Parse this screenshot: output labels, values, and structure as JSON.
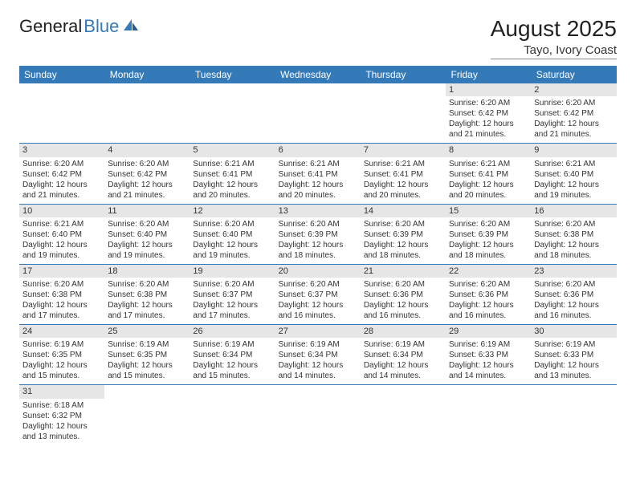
{
  "brand": {
    "part1": "General",
    "part2": "Blue"
  },
  "title": "August 2025",
  "location": "Tayo, Ivory Coast",
  "colors": {
    "header_bg": "#357ab8",
    "header_text": "#ffffff",
    "daynum_bg": "#e6e6e6",
    "border": "#357ab8",
    "text": "#333333",
    "background": "#ffffff"
  },
  "weekdays": [
    "Sunday",
    "Monday",
    "Tuesday",
    "Wednesday",
    "Thursday",
    "Friday",
    "Saturday"
  ],
  "weeks": [
    [
      {
        "day": "",
        "lines": []
      },
      {
        "day": "",
        "lines": []
      },
      {
        "day": "",
        "lines": []
      },
      {
        "day": "",
        "lines": []
      },
      {
        "day": "",
        "lines": []
      },
      {
        "day": "1",
        "lines": [
          "Sunrise: 6:20 AM",
          "Sunset: 6:42 PM",
          "Daylight: 12 hours",
          "and 21 minutes."
        ]
      },
      {
        "day": "2",
        "lines": [
          "Sunrise: 6:20 AM",
          "Sunset: 6:42 PM",
          "Daylight: 12 hours",
          "and 21 minutes."
        ]
      }
    ],
    [
      {
        "day": "3",
        "lines": [
          "Sunrise: 6:20 AM",
          "Sunset: 6:42 PM",
          "Daylight: 12 hours",
          "and 21 minutes."
        ]
      },
      {
        "day": "4",
        "lines": [
          "Sunrise: 6:20 AM",
          "Sunset: 6:42 PM",
          "Daylight: 12 hours",
          "and 21 minutes."
        ]
      },
      {
        "day": "5",
        "lines": [
          "Sunrise: 6:21 AM",
          "Sunset: 6:41 PM",
          "Daylight: 12 hours",
          "and 20 minutes."
        ]
      },
      {
        "day": "6",
        "lines": [
          "Sunrise: 6:21 AM",
          "Sunset: 6:41 PM",
          "Daylight: 12 hours",
          "and 20 minutes."
        ]
      },
      {
        "day": "7",
        "lines": [
          "Sunrise: 6:21 AM",
          "Sunset: 6:41 PM",
          "Daylight: 12 hours",
          "and 20 minutes."
        ]
      },
      {
        "day": "8",
        "lines": [
          "Sunrise: 6:21 AM",
          "Sunset: 6:41 PM",
          "Daylight: 12 hours",
          "and 20 minutes."
        ]
      },
      {
        "day": "9",
        "lines": [
          "Sunrise: 6:21 AM",
          "Sunset: 6:40 PM",
          "Daylight: 12 hours",
          "and 19 minutes."
        ]
      }
    ],
    [
      {
        "day": "10",
        "lines": [
          "Sunrise: 6:21 AM",
          "Sunset: 6:40 PM",
          "Daylight: 12 hours",
          "and 19 minutes."
        ]
      },
      {
        "day": "11",
        "lines": [
          "Sunrise: 6:20 AM",
          "Sunset: 6:40 PM",
          "Daylight: 12 hours",
          "and 19 minutes."
        ]
      },
      {
        "day": "12",
        "lines": [
          "Sunrise: 6:20 AM",
          "Sunset: 6:40 PM",
          "Daylight: 12 hours",
          "and 19 minutes."
        ]
      },
      {
        "day": "13",
        "lines": [
          "Sunrise: 6:20 AM",
          "Sunset: 6:39 PM",
          "Daylight: 12 hours",
          "and 18 minutes."
        ]
      },
      {
        "day": "14",
        "lines": [
          "Sunrise: 6:20 AM",
          "Sunset: 6:39 PM",
          "Daylight: 12 hours",
          "and 18 minutes."
        ]
      },
      {
        "day": "15",
        "lines": [
          "Sunrise: 6:20 AM",
          "Sunset: 6:39 PM",
          "Daylight: 12 hours",
          "and 18 minutes."
        ]
      },
      {
        "day": "16",
        "lines": [
          "Sunrise: 6:20 AM",
          "Sunset: 6:38 PM",
          "Daylight: 12 hours",
          "and 18 minutes."
        ]
      }
    ],
    [
      {
        "day": "17",
        "lines": [
          "Sunrise: 6:20 AM",
          "Sunset: 6:38 PM",
          "Daylight: 12 hours",
          "and 17 minutes."
        ]
      },
      {
        "day": "18",
        "lines": [
          "Sunrise: 6:20 AM",
          "Sunset: 6:38 PM",
          "Daylight: 12 hours",
          "and 17 minutes."
        ]
      },
      {
        "day": "19",
        "lines": [
          "Sunrise: 6:20 AM",
          "Sunset: 6:37 PM",
          "Daylight: 12 hours",
          "and 17 minutes."
        ]
      },
      {
        "day": "20",
        "lines": [
          "Sunrise: 6:20 AM",
          "Sunset: 6:37 PM",
          "Daylight: 12 hours",
          "and 16 minutes."
        ]
      },
      {
        "day": "21",
        "lines": [
          "Sunrise: 6:20 AM",
          "Sunset: 6:36 PM",
          "Daylight: 12 hours",
          "and 16 minutes."
        ]
      },
      {
        "day": "22",
        "lines": [
          "Sunrise: 6:20 AM",
          "Sunset: 6:36 PM",
          "Daylight: 12 hours",
          "and 16 minutes."
        ]
      },
      {
        "day": "23",
        "lines": [
          "Sunrise: 6:20 AM",
          "Sunset: 6:36 PM",
          "Daylight: 12 hours",
          "and 16 minutes."
        ]
      }
    ],
    [
      {
        "day": "24",
        "lines": [
          "Sunrise: 6:19 AM",
          "Sunset: 6:35 PM",
          "Daylight: 12 hours",
          "and 15 minutes."
        ]
      },
      {
        "day": "25",
        "lines": [
          "Sunrise: 6:19 AM",
          "Sunset: 6:35 PM",
          "Daylight: 12 hours",
          "and 15 minutes."
        ]
      },
      {
        "day": "26",
        "lines": [
          "Sunrise: 6:19 AM",
          "Sunset: 6:34 PM",
          "Daylight: 12 hours",
          "and 15 minutes."
        ]
      },
      {
        "day": "27",
        "lines": [
          "Sunrise: 6:19 AM",
          "Sunset: 6:34 PM",
          "Daylight: 12 hours",
          "and 14 minutes."
        ]
      },
      {
        "day": "28",
        "lines": [
          "Sunrise: 6:19 AM",
          "Sunset: 6:34 PM",
          "Daylight: 12 hours",
          "and 14 minutes."
        ]
      },
      {
        "day": "29",
        "lines": [
          "Sunrise: 6:19 AM",
          "Sunset: 6:33 PM",
          "Daylight: 12 hours",
          "and 14 minutes."
        ]
      },
      {
        "day": "30",
        "lines": [
          "Sunrise: 6:19 AM",
          "Sunset: 6:33 PM",
          "Daylight: 12 hours",
          "and 13 minutes."
        ]
      }
    ],
    [
      {
        "day": "31",
        "lines": [
          "Sunrise: 6:18 AM",
          "Sunset: 6:32 PM",
          "Daylight: 12 hours",
          "and 13 minutes."
        ]
      },
      {
        "day": "",
        "lines": []
      },
      {
        "day": "",
        "lines": []
      },
      {
        "day": "",
        "lines": []
      },
      {
        "day": "",
        "lines": []
      },
      {
        "day": "",
        "lines": []
      },
      {
        "day": "",
        "lines": []
      }
    ]
  ]
}
